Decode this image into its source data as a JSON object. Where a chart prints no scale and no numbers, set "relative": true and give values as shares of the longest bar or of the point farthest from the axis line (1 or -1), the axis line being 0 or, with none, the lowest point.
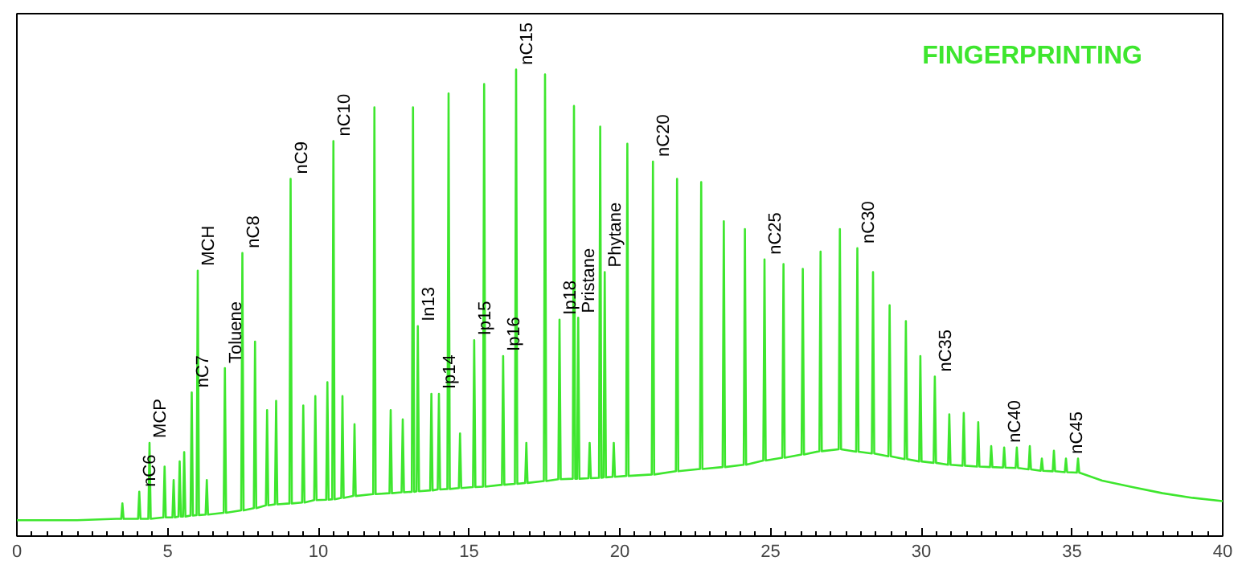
{
  "chart_data": {
    "type": "line",
    "relative": true,
    "xlim": [
      0,
      40
    ],
    "xticks": [
      0,
      5,
      10,
      15,
      20,
      25,
      30,
      35,
      40
    ],
    "tick_labels": "x",
    "grid": false,
    "line_style": "solid",
    "series": [
      {
        "color": "#3ee62e",
        "x": [
          0,
          2,
          3.3,
          3.46,
          3.5,
          3.54,
          4.02,
          4.06,
          4.1,
          4.36,
          4.4,
          4.44,
          4.86,
          4.9,
          4.94,
          5.16,
          5.2,
          5.24,
          5.36,
          5.4,
          5.44,
          5.51,
          5.55,
          5.59,
          5.76,
          5.8,
          5.84,
          5.96,
          6.0,
          6.04,
          6.26,
          6.3,
          6.34,
          6.86,
          6.9,
          6.94,
          7.44,
          7.48,
          7.52,
          7.86,
          7.9,
          7.94,
          8.26,
          8.3,
          8.34,
          8.56,
          8.6,
          8.64,
          9.04,
          9.08,
          9.12,
          9.46,
          9.5,
          9.54,
          9.86,
          9.9,
          9.94,
          10.26,
          10.3,
          10.34,
          10.46,
          10.5,
          10.54,
          10.76,
          10.8,
          10.84,
          11.16,
          11.2,
          11.24,
          11.82,
          11.86,
          11.9,
          12.36,
          12.4,
          12.44,
          12.76,
          12.8,
          12.84,
          13.1,
          13.14,
          13.18,
          13.26,
          13.3,
          13.34,
          13.71,
          13.75,
          13.79,
          13.96,
          14.0,
          14.04,
          14.28,
          14.32,
          14.36,
          14.66,
          14.7,
          14.74,
          15.13,
          15.17,
          15.21,
          15.46,
          15.5,
          15.54,
          16.09,
          16.13,
          16.17,
          16.52,
          16.56,
          16.6,
          16.86,
          16.9,
          16.94,
          17.48,
          17.52,
          17.56,
          17.96,
          18.0,
          18.04,
          18.44,
          18.48,
          18.52,
          18.58,
          18.62,
          18.66,
          18.96,
          19.0,
          19.04,
          19.31,
          19.35,
          19.39,
          19.46,
          19.5,
          19.54,
          19.76,
          19.8,
          19.84,
          20.21,
          20.25,
          20.29,
          21.06,
          21.1,
          21.14,
          21.86,
          21.9,
          21.94,
          22.66,
          22.7,
          22.74,
          23.41,
          23.45,
          23.49,
          24.11,
          24.15,
          24.19,
          24.76,
          24.8,
          24.84,
          25.39,
          25.43,
          25.47,
          26.03,
          26.07,
          26.11,
          26.62,
          26.66,
          26.7,
          27.26,
          27.3,
          27.34,
          27.84,
          27.88,
          27.92,
          28.36,
          28.4,
          28.44,
          28.91,
          28.95,
          28.99,
          29.45,
          29.49,
          29.53,
          29.93,
          29.97,
          30.01,
          30.41,
          30.45,
          30.49,
          30.89,
          30.93,
          30.97,
          31.37,
          31.41,
          31.45,
          31.85,
          31.89,
          31.93,
          32.28,
          32.32,
          32.36,
          32.71,
          32.75,
          32.79,
          33.13,
          33.17,
          33.21,
          33.56,
          33.6,
          33.64,
          33.96,
          34.0,
          34.04,
          34.36,
          34.4,
          34.44,
          34.76,
          34.8,
          34.84,
          35.16,
          35.2,
          35.24,
          36,
          37,
          38,
          39,
          40
        ],
        "values": [
          0.034,
          0.034,
          0.037,
          0.037,
          0.07,
          0.037,
          0.037,
          0.095,
          0.037,
          0.037,
          0.2,
          0.037,
          0.04,
          0.149,
          0.04,
          0.04,
          0.12,
          0.04,
          0.042,
          0.16,
          0.042,
          0.042,
          0.18,
          0.042,
          0.044,
          0.308,
          0.044,
          0.045,
          0.569,
          0.045,
          0.046,
          0.12,
          0.046,
          0.05,
          0.36,
          0.05,
          0.055,
          0.607,
          0.055,
          0.06,
          0.417,
          0.06,
          0.066,
          0.27,
          0.066,
          0.068,
          0.29,
          0.068,
          0.07,
          0.766,
          0.07,
          0.072,
          0.28,
          0.072,
          0.077,
          0.3,
          0.077,
          0.078,
          0.33,
          0.078,
          0.079,
          0.847,
          0.079,
          0.082,
          0.3,
          0.082,
          0.086,
          0.24,
          0.086,
          0.09,
          0.919,
          0.09,
          0.092,
          0.27,
          0.092,
          0.094,
          0.25,
          0.094,
          0.095,
          0.919,
          0.095,
          0.096,
          0.45,
          0.096,
          0.098,
          0.305,
          0.098,
          0.1,
          0.305,
          0.1,
          0.101,
          0.949,
          0.101,
          0.103,
          0.22,
          0.103,
          0.105,
          0.42,
          0.105,
          0.106,
          0.969,
          0.106,
          0.11,
          0.386,
          0.11,
          0.112,
          1,
          0.112,
          0.114,
          0.2,
          0.114,
          0.118,
          0.99,
          0.118,
          0.122,
          0.464,
          0.122,
          0.123,
          0.922,
          0.123,
          0.123,
          0.468,
          0.123,
          0.124,
          0.2,
          0.124,
          0.125,
          0.878,
          0.125,
          0.126,
          0.566,
          0.126,
          0.127,
          0.2,
          0.127,
          0.129,
          0.841,
          0.129,
          0.132,
          0.803,
          0.132,
          0.139,
          0.766,
          0.139,
          0.144,
          0.759,
          0.144,
          0.148,
          0.675,
          0.148,
          0.153,
          0.658,
          0.153,
          0.162,
          0.593,
          0.162,
          0.168,
          0.583,
          0.168,
          0.175,
          0.573,
          0.175,
          0.182,
          0.61,
          0.182,
          0.186,
          0.658,
          0.186,
          0.181,
          0.617,
          0.181,
          0.177,
          0.566,
          0.177,
          0.171,
          0.495,
          0.171,
          0.165,
          0.461,
          0.165,
          0.16,
          0.386,
          0.16,
          0.157,
          0.342,
          0.157,
          0.153,
          0.261,
          0.153,
          0.151,
          0.264,
          0.151,
          0.149,
          0.244,
          0.149,
          0.148,
          0.193,
          0.148,
          0.147,
          0.19,
          0.147,
          0.146,
          0.19,
          0.146,
          0.143,
          0.193,
          0.143,
          0.14,
          0.166,
          0.14,
          0.139,
          0.183,
          0.139,
          0.137,
          0.166,
          0.137,
          0.136,
          0.166,
          0.136,
          0.119,
          0.105,
          0.092,
          0.082,
          0.075
        ]
      }
    ],
    "annotations": [
      "FINGERPRINTING",
      {
        "text": "nC6",
        "x": 4.06,
        "y": 0.095
      },
      {
        "text": "MCP",
        "x": 4.4,
        "y": 0.2
      },
      {
        "text": "nC7",
        "x": 5.8,
        "y": 0.308
      },
      {
        "text": "MCH",
        "x": 6.0,
        "y": 0.569
      },
      {
        "text": "Toluene",
        "x": 6.9,
        "y": 0.36
      },
      {
        "text": "nC8",
        "x": 7.48,
        "y": 0.607
      },
      {
        "text": "nC9",
        "x": 9.08,
        "y": 0.766
      },
      {
        "text": "nC10",
        "x": 10.5,
        "y": 0.847
      },
      {
        "text": "In13",
        "x": 13.3,
        "y": 0.45
      },
      {
        "text": "Ip14",
        "x": 14.0,
        "y": 0.305
      },
      {
        "text": "Ip15",
        "x": 15.17,
        "y": 0.42
      },
      {
        "text": "nC15",
        "x": 16.56,
        "y": 1
      },
      {
        "text": "Ip16",
        "x": 16.13,
        "y": 0.386
      },
      {
        "text": "Ip18",
        "x": 18.0,
        "y": 0.464
      },
      {
        "text": "Pristane",
        "x": 18.62,
        "y": 0.468
      },
      {
        "text": "Phytane",
        "x": 19.5,
        "y": 0.566
      },
      {
        "text": "nC20",
        "x": 21.1,
        "y": 0.803
      },
      {
        "text": "nC25",
        "x": 24.8,
        "y": 0.593
      },
      {
        "text": "nC30",
        "x": 27.88,
        "y": 0.617
      },
      {
        "text": "nC35",
        "x": 30.45,
        "y": 0.342
      },
      {
        "text": "nC40",
        "x": 32.75,
        "y": 0.19
      },
      {
        "text": "nC45",
        "x": 34.8,
        "y": 0.166
      }
    ]
  }
}
